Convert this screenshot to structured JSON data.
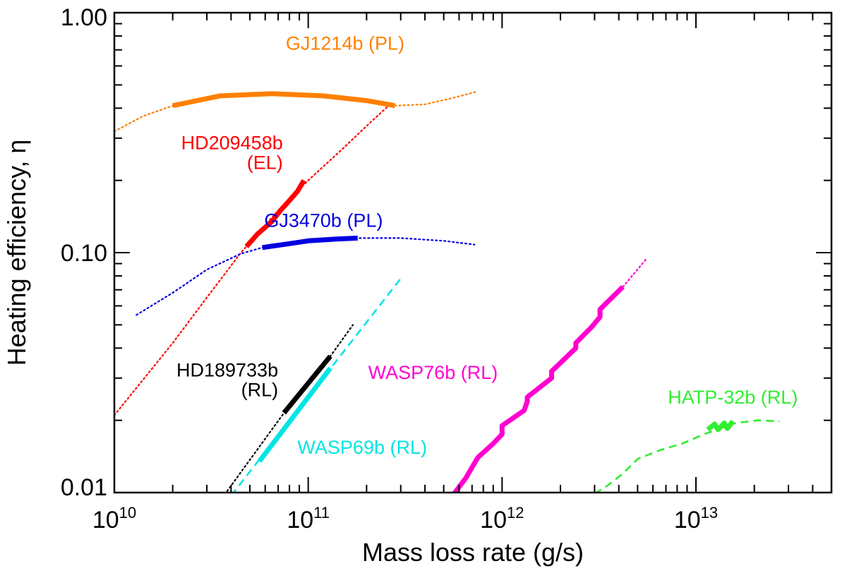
{
  "chart_data": {
    "type": "line",
    "x_scale": "log",
    "y_scale": "log",
    "xlim": [
      10000000000.0,
      50000000000000.0
    ],
    "ylim": [
      0.01,
      1.0
    ],
    "xlabel": "Mass loss rate (g/s)",
    "ylabel": "Heating efficiency, η",
    "x_ticks": [
      {
        "value": 10000000000.0,
        "base": "10",
        "exp": "10"
      },
      {
        "value": 100000000000.0,
        "base": "10",
        "exp": "11"
      },
      {
        "value": 1000000000000.0,
        "base": "10",
        "exp": "12"
      },
      {
        "value": 10000000000000.0,
        "base": "10",
        "exp": "13"
      }
    ],
    "y_ticks": [
      {
        "value": 1.0,
        "label": "1.00"
      },
      {
        "value": 0.1,
        "label": "0.10"
      },
      {
        "value": 0.01,
        "label": "0.01"
      }
    ],
    "series": [
      {
        "name": "GJ1214b (PL)",
        "color": "#ff8000",
        "label_lines": [
          "GJ1214b (PL)"
        ],
        "label_at": [
          155000000000.0,
          0.7
        ],
        "label_align": "middle",
        "dotted": [
          [
            10000000000.0,
            0.32
          ],
          [
            14000000000.0,
            0.37
          ],
          [
            20000000000.0,
            0.41
          ],
          [
            35000000000.0,
            0.45
          ],
          [
            65000000000.0,
            0.46
          ],
          [
            120000000000.0,
            0.45
          ],
          [
            200000000000.0,
            0.43
          ],
          [
            280000000000.0,
            0.41
          ],
          [
            400000000000.0,
            0.415
          ],
          [
            550000000000.0,
            0.44
          ],
          [
            750000000000.0,
            0.47
          ]
        ],
        "solid": [
          [
            20000000000.0,
            0.41
          ],
          [
            35000000000.0,
            0.45
          ],
          [
            65000000000.0,
            0.46
          ],
          [
            120000000000.0,
            0.45
          ],
          [
            200000000000.0,
            0.43
          ],
          [
            280000000000.0,
            0.41
          ]
        ],
        "dashed": []
      },
      {
        "name": "HD209458b (EL)",
        "color": "#ff0000",
        "label_lines": [
          "HD209458b",
          "(EL)"
        ],
        "label_at": [
          74000000000.0,
          0.27
        ],
        "label_align": "end",
        "dotted": [
          [
            10000000000.0,
            0.021
          ],
          [
            20000000000.0,
            0.042
          ],
          [
            30000000000.0,
            0.065
          ],
          [
            45000000000.0,
            0.1
          ],
          [
            70000000000.0,
            0.15
          ],
          [
            100000000000.0,
            0.2
          ],
          [
            150000000000.0,
            0.27
          ],
          [
            210000000000.0,
            0.35
          ],
          [
            260000000000.0,
            0.41
          ]
        ],
        "solid": [
          [
            48000000000.0,
            0.106
          ],
          [
            55000000000.0,
            0.12
          ],
          [
            65000000000.0,
            0.135
          ],
          [
            72000000000.0,
            0.15
          ],
          [
            80000000000.0,
            0.165
          ],
          [
            88000000000.0,
            0.18
          ],
          [
            95000000000.0,
            0.2
          ]
        ],
        "dashed": []
      },
      {
        "name": "GJ3470b (PL)",
        "color": "#0000e0",
        "label_lines": [
          "GJ3470b (PL)"
        ],
        "label_at": [
          120000000000.0,
          0.128
        ],
        "label_align": "middle",
        "dotted": [
          [
            13000000000.0,
            0.055
          ],
          [
            20000000000.0,
            0.068
          ],
          [
            30000000000.0,
            0.085
          ],
          [
            45000000000.0,
            0.099
          ],
          [
            58000000000.0,
            0.105
          ],
          [
            100000000000.0,
            0.112
          ],
          [
            180000000000.0,
            0.115
          ],
          [
            300000000000.0,
            0.115
          ],
          [
            500000000000.0,
            0.112
          ],
          [
            720000000000.0,
            0.108
          ]
        ],
        "solid": [
          [
            58000000000.0,
            0.105
          ],
          [
            80000000000.0,
            0.109
          ],
          [
            100000000000.0,
            0.112
          ],
          [
            140000000000.0,
            0.114
          ],
          [
            180000000000.0,
            0.115
          ]
        ],
        "dashed": []
      },
      {
        "name": "HD189733b (RL)",
        "color": "#000000",
        "label_lines": [
          "HD189733b",
          "(RL)"
        ],
        "label_at": [
          70000000000.0,
          0.0305
        ],
        "label_align": "end",
        "dotted": [
          [
            36000000000.0,
            0.0095
          ],
          [
            75000000000.0,
            0.0215
          ],
          [
            130000000000.0,
            0.037
          ],
          [
            170000000000.0,
            0.05
          ]
        ],
        "solid": [
          [
            75000000000.0,
            0.0215
          ],
          [
            130000000000.0,
            0.037
          ]
        ],
        "dashed": []
      },
      {
        "name": "WASP69b (RL)",
        "color": "#00e5e5",
        "label_lines": [
          "WASP69b (RL)"
        ],
        "label_at": [
          88000000000.0,
          0.0145
        ],
        "label_align": "start",
        "dotted": [],
        "solid": [
          [
            56000000000.0,
            0.0135
          ],
          [
            130000000000.0,
            0.033
          ]
        ],
        "dashed": [
          [
            40000000000.0,
            0.0097
          ],
          [
            300000000000.0,
            0.078
          ]
        ]
      },
      {
        "name": "WASP76b (RL)",
        "color": "#ff00d0",
        "label_lines": [
          "WASP76b (RL)"
        ],
        "label_at": [
          950000000000.0,
          0.0298
        ],
        "label_align": "end",
        "dotted": [
          [
            4200000000000.0,
            0.072
          ],
          [
            5600000000000.0,
            0.095
          ]
        ],
        "solid": [
          [
            560000000000.0,
            0.0098
          ],
          [
            650000000000.0,
            0.0115
          ],
          [
            750000000000.0,
            0.014
          ],
          [
            900000000000.0,
            0.016
          ],
          [
            1000000000000.0,
            0.0175
          ],
          [
            1000000000000.0,
            0.019
          ],
          [
            1300000000000.0,
            0.022
          ],
          [
            1350000000000.0,
            0.024
          ],
          [
            1350000000000.0,
            0.025
          ],
          [
            1800000000000.0,
            0.03
          ],
          [
            1800000000000.0,
            0.032
          ],
          [
            2400000000000.0,
            0.04
          ],
          [
            2400000000000.0,
            0.042
          ],
          [
            2900000000000.0,
            0.049
          ],
          [
            3200000000000.0,
            0.054
          ],
          [
            3200000000000.0,
            0.058
          ],
          [
            4200000000000.0,
            0.072
          ]
        ],
        "dashed": []
      },
      {
        "name": "HATP-32b (RL)",
        "color": "#30ee30",
        "label_lines": [
          "HATP-32b (RL)"
        ],
        "label_at": [
          15500000000000.0,
          0.0235
        ],
        "label_align": "middle",
        "dotted": [],
        "solid": [
          [
            11500000000000.0,
            0.0183
          ],
          [
            12500000000000.0,
            0.0193
          ],
          [
            13000000000000.0,
            0.0183
          ],
          [
            14000000000000.0,
            0.0195
          ],
          [
            14500000000000.0,
            0.0185
          ],
          [
            15500000000000.0,
            0.0198
          ]
        ],
        "dashed": [
          [
            3000000000000.0,
            0.0099
          ],
          [
            3500000000000.0,
            0.0107
          ],
          [
            4200000000000.0,
            0.012
          ],
          [
            5000000000000.0,
            0.0138
          ],
          [
            6500000000000.0,
            0.015
          ],
          [
            8500000000000.0,
            0.016
          ],
          [
            11000000000000.0,
            0.0175
          ],
          [
            16000000000000.0,
            0.0195
          ],
          [
            21000000000000.0,
            0.02
          ],
          [
            27000000000000.0,
            0.0198
          ]
        ]
      }
    ]
  }
}
